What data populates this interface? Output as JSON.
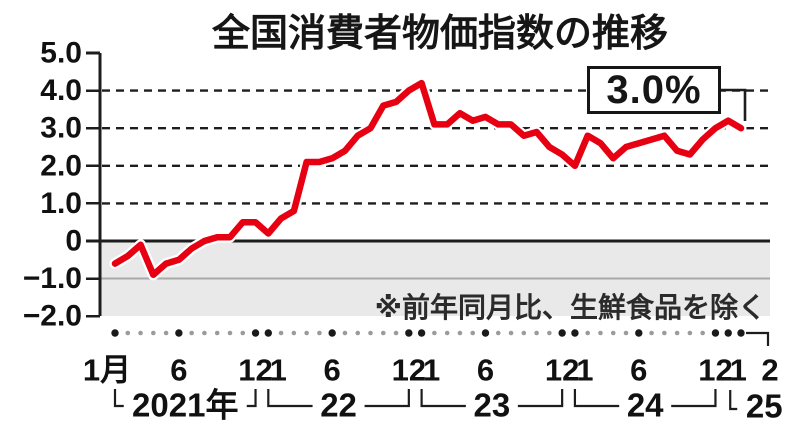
{
  "title": "全国消費者物価指数の推移",
  "note": "※前年同月比、生鮮食品を除く",
  "callout": {
    "label": "3.0%"
  },
  "colors": {
    "line": "#e60012",
    "line_casing": "#ffffff",
    "band": "#e9e9e9",
    "grid": "#1d1d1d",
    "zero_line": "#1d1d1d",
    "minus_one_line": "#a9a9a9",
    "dot_major": "#1a1a1a",
    "dot_minor": "#9b9b9b",
    "text": "#111111"
  },
  "chart_data": {
    "type": "line",
    "title": "全国消費者物価指数の推移",
    "unit": "%",
    "note": "※前年同月比、生鮮食品を除く",
    "x_start": "2021-01",
    "x_end": "2025-02",
    "series": [
      {
        "name": "全国消費者物価指数（生鮮食品を除く）前年同月比",
        "values": [
          -0.6,
          -0.4,
          -0.1,
          -0.9,
          -0.6,
          -0.5,
          -0.2,
          0.0,
          0.1,
          0.1,
          0.5,
          0.5,
          0.2,
          0.6,
          0.8,
          2.1,
          2.1,
          2.2,
          2.4,
          2.8,
          3.0,
          3.6,
          3.7,
          4.0,
          4.2,
          3.1,
          3.1,
          3.4,
          3.2,
          3.3,
          3.1,
          3.1,
          2.8,
          2.9,
          2.5,
          2.3,
          2.0,
          2.8,
          2.6,
          2.2,
          2.5,
          2.6,
          2.7,
          2.8,
          2.4,
          2.3,
          2.7,
          3.0,
          3.2,
          3.0
        ]
      }
    ],
    "last_value_label": "3.0%",
    "ylim": [
      -2.0,
      5.0
    ],
    "yticks": [
      {
        "v": 5,
        "label": "5.0"
      },
      {
        "v": 4,
        "label": "4.0"
      },
      {
        "v": 3,
        "label": "3.0"
      },
      {
        "v": 2,
        "label": "2.0"
      },
      {
        "v": 1,
        "label": "1.0"
      },
      {
        "v": 0,
        "label": "0"
      },
      {
        "v": -1,
        "label": "−1.0"
      },
      {
        "v": -2,
        "label": "−2.0"
      }
    ],
    "grid_dashed_at": [
      1,
      2,
      3,
      4
    ],
    "zero_line_at": 0,
    "gray_line_at": -1,
    "shaded_band": [
      0,
      -2
    ],
    "x_tick_labels": [
      {
        "i": 0,
        "label": "1月"
      },
      {
        "i": 5,
        "label": "6"
      },
      {
        "i": 11,
        "label": "12"
      },
      {
        "i": 12,
        "label": "1"
      },
      {
        "i": 17,
        "label": "6"
      },
      {
        "i": 23,
        "label": "12"
      },
      {
        "i": 24,
        "label": "1"
      },
      {
        "i": 29,
        "label": "6"
      },
      {
        "i": 35,
        "label": "12"
      },
      {
        "i": 36,
        "label": "1"
      },
      {
        "i": 41,
        "label": "6"
      },
      {
        "i": 47,
        "label": "12"
      },
      {
        "i": 48,
        "label": "1"
      },
      {
        "i": 49,
        "label": "2"
      }
    ],
    "year_groups": [
      {
        "label": "2021年",
        "from": 0,
        "to": 11
      },
      {
        "label": "22",
        "from": 12,
        "to": 23
      },
      {
        "label": "23",
        "from": 24,
        "to": 35
      },
      {
        "label": "24",
        "from": 36,
        "to": 47
      },
      {
        "label": "25",
        "from": 48,
        "to": 49
      }
    ]
  }
}
